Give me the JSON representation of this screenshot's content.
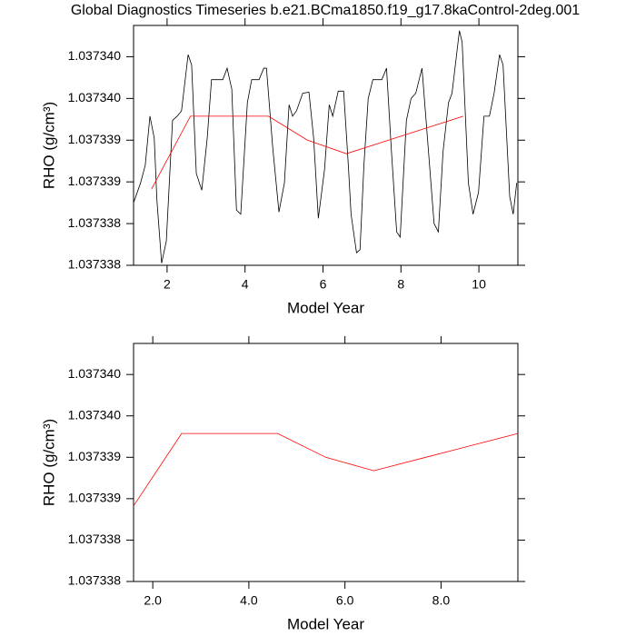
{
  "chart_data": [
    {
      "type": "line",
      "title": "Global Diagnostics Timeseries b.e21.BCma1850.f19_g17.8kaControl-2deg.001",
      "xlabel": "Model Year",
      "ylabel": "RHO (g/cm³)",
      "xlim": [
        1.14,
        11.0
      ],
      "xticks": [
        2,
        4,
        6,
        8,
        10
      ],
      "ylim": [
        1.037338,
        1.0373403
      ],
      "yticks": [
        {
          "value": 1.037338,
          "label": "1.037338"
        },
        {
          "value": 1.0373384,
          "label": "1.037338"
        },
        {
          "value": 1.0373388,
          "label": "1.037339"
        },
        {
          "value": 1.0373392,
          "label": "1.037339"
        },
        {
          "value": 1.0373396,
          "label": "1.037340"
        },
        {
          "value": 1.03734,
          "label": "1.037340"
        }
      ],
      "series": [
        {
          "color": "#000000",
          "x": [
            1.14,
            1.32,
            1.44,
            1.56,
            1.67,
            1.74,
            1.86,
            1.98,
            2.14,
            2.26,
            2.37,
            2.54,
            2.63,
            2.75,
            2.89,
            3.03,
            3.14,
            3.43,
            3.54,
            3.66,
            3.78,
            3.89,
            4.06,
            4.17,
            4.36,
            4.48,
            4.55,
            4.71,
            4.87,
            5.01,
            5.13,
            5.22,
            5.32,
            5.48,
            5.64,
            5.76,
            5.88,
            6.04,
            6.16,
            6.25,
            6.39,
            6.53,
            6.65,
            6.72,
            6.86,
            6.95,
            7.05,
            7.16,
            7.28,
            7.51,
            7.63,
            7.75,
            7.89,
            7.98,
            8.14,
            8.26,
            8.38,
            8.54,
            8.68,
            8.85,
            8.96,
            9.08,
            9.22,
            9.31,
            9.5,
            9.57,
            9.73,
            9.85,
            9.99,
            10.13,
            10.27,
            10.39,
            10.53,
            10.62,
            10.79,
            10.88,
            10.97
          ],
          "values": [
            1.0373386,
            1.03733879,
            1.03733896,
            1.03733943,
            1.03733922,
            1.03733862,
            1.03733802,
            1.03733823,
            1.03733939,
            1.03733943,
            1.03733948,
            1.03734002,
            1.03733992,
            1.03733888,
            1.03733872,
            1.03733922,
            1.03733978,
            1.03733978,
            1.03733989,
            1.03733969,
            1.03733853,
            1.03733849,
            1.03733956,
            1.03733978,
            1.03733978,
            1.03733989,
            1.03733989,
            1.03733913,
            1.03733851,
            1.03733879,
            1.03733954,
            1.03733943,
            1.03733948,
            1.03733965,
            1.03733966,
            1.03733922,
            1.03733845,
            1.03733892,
            1.03733954,
            1.03733943,
            1.03733967,
            1.03733967,
            1.03733896,
            1.03733849,
            1.03733812,
            1.03733815,
            1.03733896,
            1.0373396,
            1.03733978,
            1.03733978,
            1.03733989,
            1.03733913,
            1.03733832,
            1.03733827,
            1.03733939,
            1.0373396,
            1.03733965,
            1.03733989,
            1.03733922,
            1.0373384,
            1.03733832,
            1.03733909,
            1.03733956,
            1.03733965,
            1.03734025,
            1.03734014,
            1.03733879,
            1.03733849,
            1.0373387,
            1.03733943,
            1.03733943,
            1.03733965,
            1.03734002,
            1.03733992,
            1.03733866,
            1.03733849,
            1.03733879
          ]
        },
        {
          "color": "#ff0000",
          "x": [
            1.6,
            2.6,
            3.6,
            4.6,
            5.6,
            6.6,
            7.6,
            8.6,
            9.6
          ],
          "values": [
            1.03733873,
            1.03733943,
            1.03733943,
            1.03733943,
            1.0373392,
            1.03733907,
            1.03733919,
            1.03733931,
            1.03733943
          ]
        }
      ]
    },
    {
      "type": "line",
      "xlabel": "Model Year",
      "ylabel": "RHO (g/cm³)",
      "xlim": [
        1.6,
        9.6
      ],
      "xticks": [
        {
          "value": 2,
          "label": "2.0"
        },
        {
          "value": 4,
          "label": "4.0"
        },
        {
          "value": 6,
          "label": "6.0"
        },
        {
          "value": 8,
          "label": "8.0"
        }
      ],
      "ylim": [
        1.037338,
        1.0373403
      ],
      "yticks": [
        {
          "value": 1.037338,
          "label": "1.037338"
        },
        {
          "value": 1.0373384,
          "label": "1.037338"
        },
        {
          "value": 1.0373388,
          "label": "1.037339"
        },
        {
          "value": 1.0373392,
          "label": "1.037339"
        },
        {
          "value": 1.0373396,
          "label": "1.037340"
        },
        {
          "value": 1.03734,
          "label": "1.037340"
        }
      ],
      "series": [
        {
          "color": "#ff0000",
          "x": [
            1.6,
            2.6,
            3.6,
            4.6,
            5.6,
            6.6,
            7.6,
            8.6,
            9.6
          ],
          "values": [
            1.03733873,
            1.03733943,
            1.03733943,
            1.03733943,
            1.0373392,
            1.03733907,
            1.03733919,
            1.03733931,
            1.03733943
          ]
        }
      ]
    }
  ]
}
